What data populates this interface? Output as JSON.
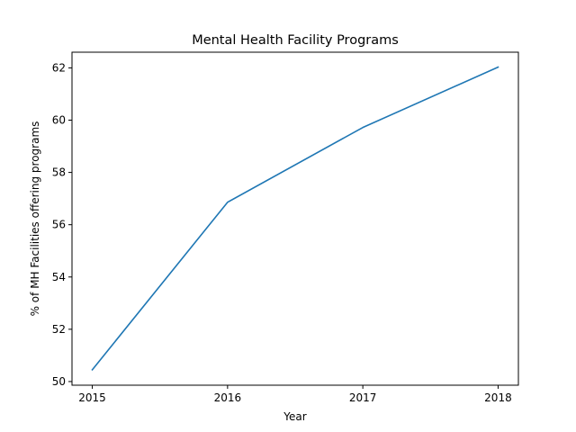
{
  "chart_data": {
    "type": "line",
    "title": "Mental Health Facility Programs",
    "xlabel": "Year",
    "ylabel": "% of MH Facilities offering programs",
    "x": [
      2015,
      2016,
      2017,
      2018
    ],
    "x_tick_labels": [
      "2015",
      "2016",
      "2017",
      "2018"
    ],
    "y_ticks": [
      50,
      52,
      54,
      56,
      58,
      60,
      62
    ],
    "y_tick_labels": [
      "50",
      "52",
      "54",
      "56",
      "58",
      "60",
      "62"
    ],
    "ylim": [
      49.86,
      62.6
    ],
    "xlim": [
      2014.85,
      2018.15
    ],
    "grid": false,
    "series": [
      {
        "values": [
          50.45,
          56.86,
          59.72,
          62.03
        ],
        "color": "#1f77b4"
      }
    ]
  }
}
